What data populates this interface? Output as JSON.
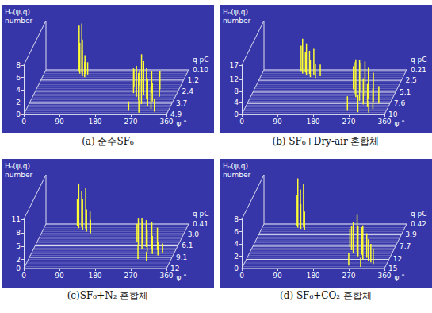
{
  "chart_data": [
    {
      "type": "waterfall",
      "title": "(a) 순수SF₆",
      "xlabel": "ψ °",
      "ylabel": "Hₙ(ψ,q) number",
      "zlabel": "q pC",
      "xlim": [
        0,
        360
      ],
      "xticks": [
        0,
        90,
        180,
        270,
        360
      ],
      "ylim": [
        0,
        8
      ],
      "yticks": [
        0,
        2,
        4,
        6,
        8
      ],
      "zlim": [
        0.1,
        4.9
      ],
      "zticks": [
        {
          "value": 0.1,
          "label": "0.10"
        },
        1.2,
        2.4,
        3.7,
        4.9
      ],
      "color": "#ffff33",
      "x": [
        86,
        90,
        94,
        97,
        100,
        103,
        107,
        111,
        244,
        250,
        256,
        262,
        268,
        272,
        278,
        284,
        290,
        296,
        302,
        308,
        314,
        320,
        326,
        260,
        288,
        312
      ],
      "z": [
        0.3,
        0.5,
        0.4,
        0.6,
        0.8,
        0.5,
        0.9,
        0.6,
        2.0,
        2.6,
        1.8,
        3.0,
        2.4,
        3.4,
        2.8,
        3.8,
        3.2,
        2.6,
        4.0,
        3.5,
        4.3,
        3.0,
        4.6,
        4.5,
        4.7,
        2.2
      ],
      "values": [
        7.5,
        5,
        8,
        4,
        6,
        3,
        2.5,
        2,
        3,
        4,
        2.5,
        5,
        6,
        4.5,
        5.5,
        4,
        5,
        3.5,
        4.5,
        3,
        3.5,
        2.5,
        2,
        1.5,
        2,
        3
      ]
    },
    {
      "type": "waterfall",
      "title": "(b) SF₆+Dry-air 혼합체",
      "xlabel": "ψ °",
      "ylabel": "Hₙ(ψ,q) number",
      "zlabel": "q pC",
      "xlim": [
        0,
        360
      ],
      "xticks": [
        0,
        90,
        180,
        270,
        360
      ],
      "ylim": [
        0,
        17
      ],
      "yticks": [
        0,
        4,
        8,
        12,
        17
      ],
      "zlim": [
        0.21,
        10
      ],
      "zticks": [
        0.21,
        2.5,
        5.1,
        7.6,
        10
      ],
      "color": "#ffff33",
      "x": [
        96,
        102,
        108,
        114,
        120,
        126,
        132,
        140,
        150,
        250,
        258,
        266,
        272,
        280,
        288,
        294,
        300,
        308,
        316,
        324,
        332,
        262,
        290,
        318
      ],
      "z": [
        0.6,
        1.0,
        0.8,
        1.4,
        1.1,
        1.8,
        1.3,
        2.0,
        1.6,
        4.5,
        5.5,
        6.2,
        5.0,
        7.0,
        6.0,
        7.8,
        6.6,
        8.4,
        7.2,
        8.8,
        7.6,
        9.2,
        9.5,
        9.6
      ],
      "values": [
        9,
        12,
        7,
        11,
        8,
        6,
        9,
        5,
        4,
        8,
        11,
        13,
        10,
        14,
        12,
        9,
        11,
        8,
        10,
        7,
        6,
        5,
        6,
        4
      ]
    },
    {
      "type": "waterfall",
      "title": "(c)SF₆+N₂ 혼합체",
      "xlabel": "ψ °",
      "ylabel": "Hₙ(ψ,q) number",
      "zlabel": "q pC",
      "xlim": [
        0,
        360
      ],
      "xticks": [
        0,
        90,
        180,
        270,
        360
      ],
      "ylim": [
        0,
        11
      ],
      "yticks": [
        0,
        2,
        5,
        8,
        11
      ],
      "zlim": [
        0.41,
        12
      ],
      "zticks": [
        0.41,
        {
          "value": 3,
          "label": "3.0"
        },
        6.1,
        9.1,
        12
      ],
      "color": "#ffff33",
      "x": [
        82,
        88,
        94,
        100,
        106,
        112,
        118,
        124,
        252,
        260,
        268,
        274,
        282,
        290,
        298,
        306,
        314,
        322,
        330,
        276,
        300
      ],
      "z": [
        1.0,
        1.5,
        1.2,
        2.0,
        1.6,
        2.4,
        1.8,
        2.8,
        5.0,
        6.0,
        5.5,
        7.0,
        6.4,
        7.6,
        6.8,
        8.2,
        7.2,
        8.6,
        7.8,
        9.5,
        10.0
      ],
      "values": [
        6,
        10,
        8,
        7,
        9,
        5,
        4,
        3,
        4,
        6,
        5,
        7,
        6,
        5,
        6,
        4,
        5,
        3,
        2,
        3,
        2
      ]
    },
    {
      "type": "waterfall",
      "title": "(d) SF₆+CO₂ 혼합체",
      "xlabel": "ψ °",
      "ylabel": "Hₙ(ψ,q) number",
      "zlabel": "q pC",
      "xlim": [
        0,
        360
      ],
      "xticks": [
        0,
        90,
        180,
        270,
        360
      ],
      "ylim": [
        0,
        8
      ],
      "yticks": [
        0,
        2,
        4,
        6,
        8
      ],
      "zlim": [
        0.42,
        15
      ],
      "zticks": [
        0.42,
        3.9,
        7.7,
        12,
        15
      ],
      "color": "#ffff33",
      "x": [
        86,
        90,
        95,
        99,
        104,
        110,
        246,
        254,
        262,
        270,
        278,
        286,
        294,
        302,
        310,
        318,
        326,
        266,
        298
      ],
      "z": [
        1.0,
        1.6,
        1.2,
        2.0,
        1.5,
        2.4,
        8.0,
        9.0,
        10.0,
        9.5,
        11.0,
        10.5,
        12.0,
        11.5,
        12.5,
        13.0,
        13.5,
        14.0,
        14.5
      ],
      "values": [
        5,
        8,
        6,
        4,
        7,
        3,
        3,
        4,
        5,
        6,
        5,
        4.5,
        5.5,
        4,
        3.5,
        3,
        2.5,
        2,
        1.5
      ]
    }
  ]
}
